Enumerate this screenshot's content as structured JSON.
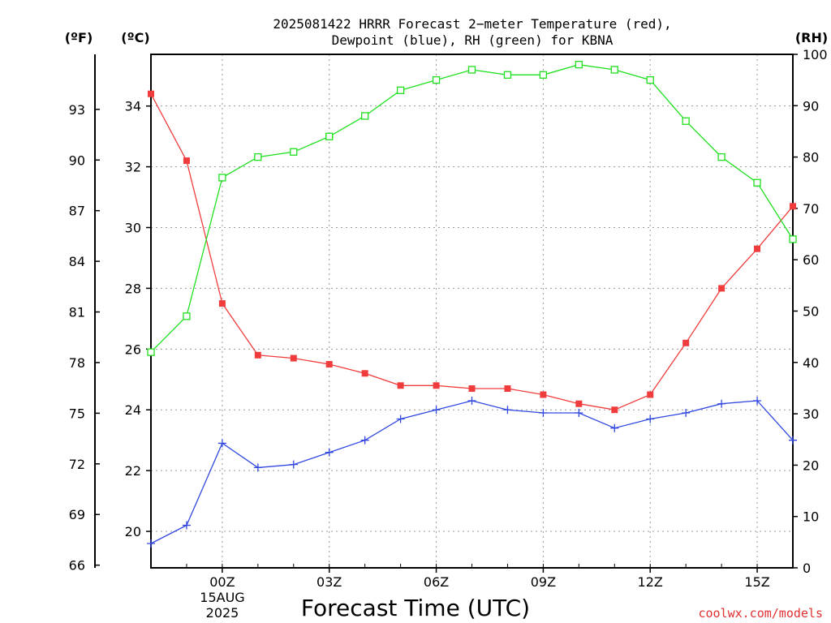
{
  "title_line1": "2025081422 HRRR Forecast 2−meter Temperature (red),",
  "title_line2": "Dewpoint (blue), RH (green) for KBNA",
  "unit_f": "(ºF)",
  "unit_c": "(ºC)",
  "unit_rh": "(RH)",
  "date_line1": "15AUG",
  "date_line2": "2025",
  "credit": "coolwx.com/models",
  "colors": {
    "temperature": "#f03c3c",
    "dewpoint": "#3048e0",
    "rh": "#1ee01e"
  },
  "chart_data": {
    "type": "line",
    "xlabel": "Forecast Time (UTC)",
    "x_hours": [
      -2,
      -1,
      0,
      1,
      2,
      3,
      4,
      5,
      6,
      7,
      8,
      9,
      10,
      11,
      12,
      13,
      14,
      15,
      16
    ],
    "x_ticks": [
      {
        "hour": 0,
        "label": "00Z"
      },
      {
        "hour": 3,
        "label": "03Z"
      },
      {
        "hour": 6,
        "label": "06Z"
      },
      {
        "hour": 9,
        "label": "09Z"
      },
      {
        "hour": 12,
        "label": "12Z"
      },
      {
        "hour": 15,
        "label": "15Z"
      }
    ],
    "xlim": [
      -2,
      16
    ],
    "ylim_c": [
      18.8,
      35.7
    ],
    "ylim_rh": [
      0,
      100
    ],
    "y_ticks_c": [
      20,
      22,
      24,
      26,
      28,
      30,
      32,
      34
    ],
    "y_ticks_f": [
      66,
      69,
      72,
      75,
      78,
      81,
      84,
      87,
      90,
      93
    ],
    "y_ticks_rh": [
      0,
      10,
      20,
      30,
      40,
      50,
      60,
      70,
      80,
      90,
      100
    ],
    "grid": true,
    "series": [
      {
        "key": "temperature",
        "axis": "c",
        "marker": "square-filled",
        "values": [
          34.4,
          32.2,
          27.5,
          25.8,
          25.7,
          25.5,
          25.2,
          24.8,
          24.8,
          24.7,
          24.7,
          24.5,
          24.2,
          24.0,
          24.5,
          26.2,
          28.0,
          29.3,
          30.7
        ]
      },
      {
        "key": "dewpoint",
        "axis": "c",
        "marker": "plus",
        "values": [
          19.6,
          20.2,
          22.9,
          22.1,
          22.2,
          22.6,
          23.0,
          23.7,
          24.0,
          24.3,
          24.0,
          23.9,
          23.9,
          23.4,
          23.7,
          23.9,
          24.2,
          24.3,
          23.0
        ]
      },
      {
        "key": "rh",
        "axis": "rh",
        "marker": "square-open",
        "values": [
          42,
          49,
          76,
          80,
          81,
          84,
          88,
          93,
          95,
          97,
          96,
          96,
          98,
          97,
          95,
          87,
          80,
          75,
          64
        ]
      }
    ]
  }
}
